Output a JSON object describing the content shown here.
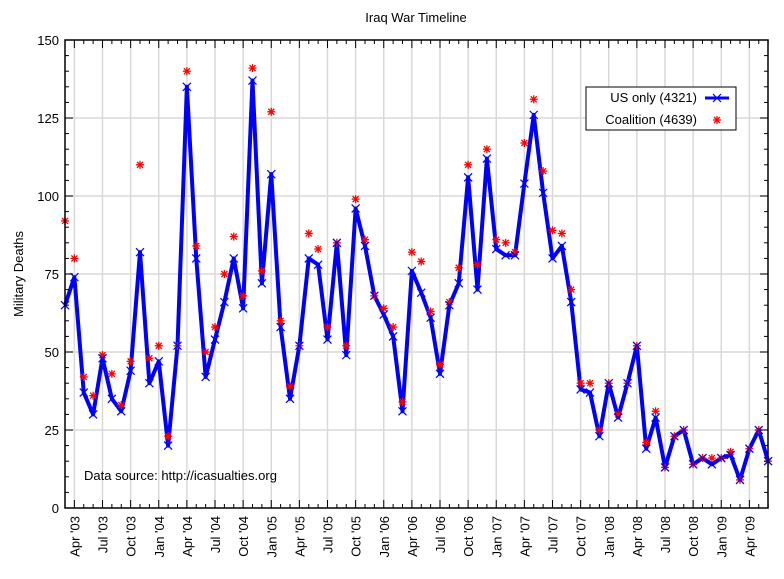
{
  "chart_data": {
    "type": "line",
    "title": "Iraq War Timeline",
    "xlabel": "",
    "ylabel": "Military Deaths",
    "ylim": [
      0,
      150
    ],
    "yticks": [
      0,
      25,
      50,
      75,
      100,
      125,
      150
    ],
    "y_minor_step": 5,
    "grid": true,
    "x_start": "Mar 2003",
    "x_step": "1 month",
    "x": [
      "Mar '03",
      "Apr '03",
      "May '03",
      "Jun '03",
      "Jul '03",
      "Aug '03",
      "Sep '03",
      "Oct '03",
      "Nov '03",
      "Dec '03",
      "Jan '04",
      "Feb '04",
      "Mar '04",
      "Apr '04",
      "May '04",
      "Jun '04",
      "Jul '04",
      "Aug '04",
      "Sep '04",
      "Oct '04",
      "Nov '04",
      "Dec '04",
      "Jan '05",
      "Feb '05",
      "Mar '05",
      "Apr '05",
      "May '05",
      "Jun '05",
      "Jul '05",
      "Aug '05",
      "Sep '05",
      "Oct '05",
      "Nov '05",
      "Dec '05",
      "Jan '06",
      "Feb '06",
      "Mar '06",
      "Apr '06",
      "May '06",
      "Jun '06",
      "Jul '06",
      "Aug '06",
      "Sep '06",
      "Oct '06",
      "Nov '06",
      "Dec '06",
      "Jan '07",
      "Feb '07",
      "Mar '07",
      "Apr '07",
      "May '07",
      "Jun '07",
      "Jul '07",
      "Aug '07",
      "Sep '07",
      "Oct '07",
      "Nov '07",
      "Dec '07",
      "Jan '08",
      "Feb '08",
      "Mar '08",
      "Apr '08",
      "May '08",
      "Jun '08",
      "Jul '08",
      "Aug '08",
      "Sep '08",
      "Oct '08",
      "Nov '08",
      "Dec '08",
      "Jan '09",
      "Feb '09",
      "Mar '09",
      "Apr '09",
      "May '09",
      "Jun '09"
    ],
    "xtick_labels": [
      "Apr '03",
      "Jul '03",
      "Oct '03",
      "Jan '04",
      "Apr '04",
      "Jul '04",
      "Oct '04",
      "Jan '05",
      "Apr '05",
      "Jul '05",
      "Oct '05",
      "Jan '06",
      "Apr '06",
      "Jul '06",
      "Oct '06",
      "Jan '07",
      "Apr '07",
      "Jul '07",
      "Oct '07",
      "Jan '08",
      "Apr '08",
      "Jul '08",
      "Oct '08",
      "Jan '09",
      "Apr '09"
    ],
    "series": [
      {
        "name": "US only (4321)",
        "style": "line+x",
        "color": "#0000ff",
        "values": [
          65,
          74,
          37,
          30,
          48,
          35,
          31,
          44,
          82,
          40,
          47,
          20,
          52,
          135,
          80,
          42,
          54,
          66,
          80,
          64,
          137,
          72,
          107,
          58,
          35,
          52,
          80,
          78,
          54,
          85,
          49,
          96,
          84,
          68,
          62,
          55,
          31,
          76,
          69,
          61,
          43,
          65,
          72,
          106,
          70,
          112,
          83,
          81,
          81,
          104,
          126,
          101,
          80,
          84,
          66,
          38,
          37,
          23,
          40,
          29,
          40,
          52,
          19,
          29,
          13,
          23,
          25,
          14,
          16,
          14,
          16,
          17,
          9,
          19,
          25,
          15
        ]
      },
      {
        "name": "Coalition (4639)",
        "style": "asterisk",
        "color": "#ff0000",
        "values": [
          92,
          80,
          42,
          36,
          49,
          43,
          33,
          47,
          110,
          48,
          52,
          23,
          52,
          140,
          84,
          50,
          58,
          75,
          87,
          68,
          141,
          76,
          127,
          60,
          39,
          52,
          88,
          83,
          58,
          85,
          52,
          99,
          86,
          68,
          64,
          58,
          34,
          82,
          79,
          63,
          46,
          66,
          77,
          110,
          78,
          115,
          86,
          85,
          82,
          117,
          131,
          108,
          89,
          88,
          70,
          40,
          40,
          25,
          40,
          30,
          40,
          52,
          21,
          31,
          13,
          23,
          25,
          14,
          16,
          16,
          16,
          18,
          9,
          19,
          25,
          15
        ]
      }
    ],
    "legend": {
      "placement": "top-right",
      "entries": [
        "US only (4321)",
        "Coalition (4639)"
      ]
    },
    "annotations": [
      "Data source: http://icasualties.org"
    ]
  }
}
